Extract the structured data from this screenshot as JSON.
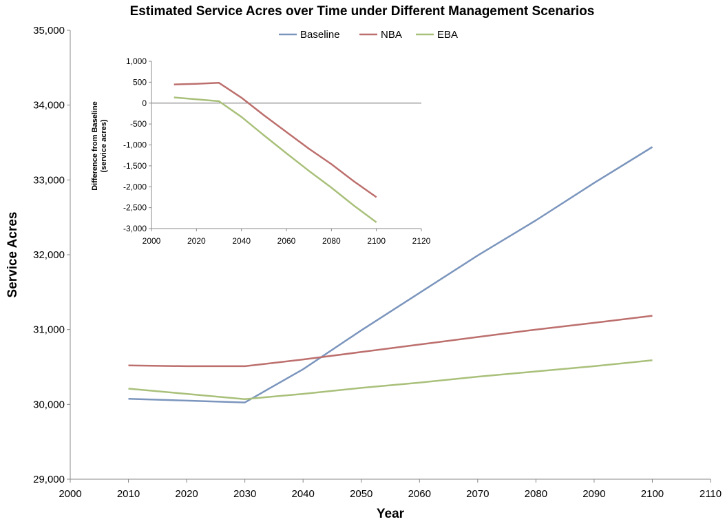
{
  "chart_data": [
    {
      "type": "line",
      "title": "Estimated Service Acres over Time under Different Management Scenarios",
      "xlabel": "Year",
      "ylabel": "Service Acres",
      "xlim": [
        2000,
        2110
      ],
      "ylim": [
        29000,
        35000
      ],
      "x_ticks": [
        2000,
        2010,
        2020,
        2030,
        2040,
        2050,
        2060,
        2070,
        2080,
        2090,
        2100,
        2110
      ],
      "y_ticks": [
        29000,
        30000,
        31000,
        32000,
        33000,
        34000,
        35000
      ],
      "x_tick_labels": [
        "2000",
        "2010",
        "2020",
        "2030",
        "2040",
        "2050",
        "2060",
        "2070",
        "2080",
        "2090",
        "2100",
        "2110"
      ],
      "y_tick_labels": [
        "29,000",
        "30,000",
        "31,000",
        "32,000",
        "33,000",
        "34,000",
        "35,000"
      ],
      "grid": false,
      "legend_position": "top",
      "series": [
        {
          "name": "Baseline",
          "color": "#7b95bd",
          "x": [
            2010,
            2020,
            2030,
            2040,
            2050,
            2060,
            2070,
            2080,
            2090,
            2100
          ],
          "values": [
            30075,
            30050,
            30025,
            30470,
            30990,
            31490,
            31990,
            32460,
            32960,
            33440
          ]
        },
        {
          "name": "NBA",
          "color": "#bc6f6d",
          "x": [
            2010,
            2020,
            2030,
            2040,
            2050,
            2060,
            2070,
            2080,
            2090,
            2100
          ],
          "values": [
            30520,
            30510,
            30510,
            30600,
            30700,
            30800,
            30900,
            31000,
            31090,
            31185
          ]
        },
        {
          "name": "EBA",
          "color": "#a9c07a",
          "x": [
            2010,
            2020,
            2030,
            2040,
            2050,
            2060,
            2070,
            2080,
            2090,
            2100
          ],
          "values": [
            30210,
            30140,
            30070,
            30140,
            30220,
            30290,
            30370,
            30440,
            30510,
            30590
          ]
        }
      ]
    },
    {
      "type": "line",
      "title": "",
      "xlabel": "",
      "ylabel": "Difference from Baseline (service acres)",
      "ylabel_lines": [
        "Difference from Baseline",
        "(service acres)"
      ],
      "xlim": [
        2000,
        2120
      ],
      "ylim": [
        -3000,
        1000
      ],
      "x_ticks": [
        2000,
        2020,
        2040,
        2060,
        2080,
        2100,
        2120
      ],
      "y_ticks": [
        -3000,
        -2500,
        -2000,
        -1500,
        -1000,
        -500,
        0,
        500,
        1000
      ],
      "x_tick_labels": [
        "2000",
        "2020",
        "2040",
        "2060",
        "2080",
        "2100",
        "2120"
      ],
      "y_tick_labels": [
        "-3,000",
        "-2,500",
        "-2,000",
        "-1,500",
        "-1,000",
        "-500",
        "0",
        "500",
        "1,000"
      ],
      "grid": false,
      "zero_line": true,
      "series": [
        {
          "name": "NBA",
          "color": "#bc6f6d",
          "x": [
            2010,
            2020,
            2030,
            2040,
            2050,
            2060,
            2070,
            2080,
            2090,
            2100
          ],
          "values": [
            445,
            460,
            485,
            130,
            -290,
            -690,
            -1090,
            -1460,
            -1870,
            -2250
          ]
        },
        {
          "name": "EBA",
          "color": "#a9c07a",
          "x": [
            2010,
            2020,
            2030,
            2040,
            2050,
            2060,
            2070,
            2080,
            2090,
            2100
          ],
          "values": [
            135,
            90,
            45,
            -330,
            -770,
            -1200,
            -1620,
            -2020,
            -2450,
            -2850
          ]
        }
      ]
    }
  ]
}
